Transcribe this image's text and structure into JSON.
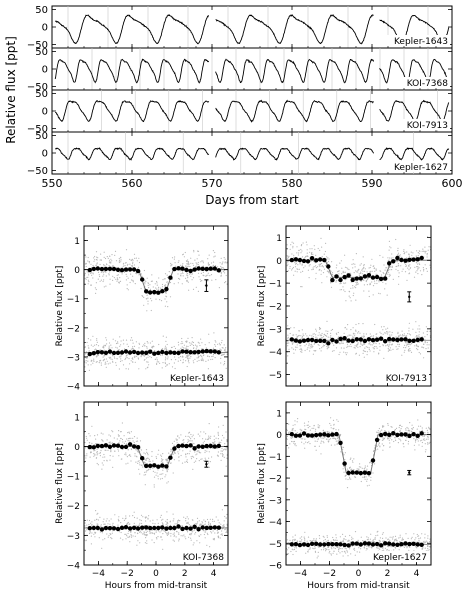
{
  "chart_data": [
    {
      "type": "line",
      "panel": "light-curves",
      "xlabel": "Days from start",
      "ylabel": "Relative flux [ppt]",
      "xlim": [
        550,
        600
      ],
      "xticks": [
        "550",
        "560",
        "570",
        "580",
        "590",
        "600"
      ],
      "gaps": [
        [
          569.6,
          570.4
        ],
        [
          590.2,
          590.9
        ]
      ],
      "series": [
        {
          "name": "Kepler-1643",
          "ylim": [
            -60,
            60
          ],
          "yticks": [
            "50",
            "0",
            "−50"
          ],
          "amplitude": 38,
          "offset": 0,
          "period": 5.1,
          "phase": 0.4,
          "shape": 2.2,
          "grid": 5
        },
        {
          "name": "KOI-7368",
          "ylim": [
            -60,
            60
          ],
          "yticks": [
            "50",
            "0",
            "−50"
          ],
          "amplitude": 34,
          "offset": 0,
          "period": 2.6,
          "phase": 0.2,
          "shape": 1.6,
          "grid": 3
        },
        {
          "name": "KOI-7913",
          "ylim": [
            -60,
            60
          ],
          "yticks": [
            "50",
            "0",
            "−50"
          ],
          "amplitude": 32,
          "offset": 5,
          "period": 3.4,
          "phase": 0.7,
          "shape": 1.2,
          "grid": 4.2
        },
        {
          "name": "Kepler-1627",
          "ylim": [
            -60,
            60
          ],
          "yticks": [
            "50",
            "0",
            "−50"
          ],
          "amplitude": 18,
          "offset": 0,
          "period": 2.6,
          "phase": 0.5,
          "shape": 0.9,
          "grid": 7.2
        }
      ]
    },
    {
      "type": "scatter",
      "panel": "transit-folds",
      "xlabel": "Hours from mid-transit",
      "ylabel": "Relative flux [ppt]",
      "xlim": [
        -5,
        5
      ],
      "xticks": [
        "−4",
        "−2",
        "0",
        "2",
        "4"
      ],
      "panels": [
        {
          "name": "Kepler-1643",
          "ylim": [
            -4,
            1.5
          ],
          "yticks": [
            1,
            0,
            -1,
            -2,
            -3,
            -4
          ],
          "ytick_labels": [
            "1",
            "0",
            "−1",
            "−2",
            "−3",
            "−4"
          ],
          "depth": 0.75,
          "duration": 2.4,
          "residual_offset": -2.85,
          "errbar": {
            "x": 3.5,
            "y": -0.55,
            "half": 0.2
          }
        },
        {
          "name": "KOI-7913",
          "ylim": [
            -5.5,
            1.5
          ],
          "yticks": [
            1,
            0,
            -1,
            -2,
            -3,
            -4,
            -5
          ],
          "ytick_labels": [
            "1",
            "0",
            "−1",
            "−2",
            "−3",
            "−4",
            "−5"
          ],
          "depth": 0.75,
          "duration": 4.6,
          "residual_offset": -3.5,
          "errbar": {
            "x": 3.5,
            "y": -1.6,
            "half": 0.22
          }
        },
        {
          "name": "KOI-7368",
          "ylim": [
            -4,
            1.5
          ],
          "yticks": [
            1,
            0,
            -1,
            -2,
            -3,
            -4
          ],
          "ytick_labels": [
            "1",
            "0",
            "−1",
            "−2",
            "−3",
            "−4"
          ],
          "depth": 0.65,
          "duration": 2.6,
          "residual_offset": -2.75,
          "errbar": {
            "x": 3.5,
            "y": -0.6,
            "half": 0.1
          }
        },
        {
          "name": "Kepler-1627",
          "ylim": [
            -6,
            1.5
          ],
          "yticks": [
            1,
            0,
            -1,
            -2,
            -3,
            -4,
            -5,
            -6
          ],
          "ytick_labels": [
            "1",
            "0",
            "−1",
            "−2",
            "−3",
            "−4",
            "−5",
            "−6"
          ],
          "depth": 1.75,
          "duration": 2.7,
          "residual_offset": -5.05,
          "errbar": {
            "x": 3.5,
            "y": -1.75,
            "half": 0.1
          }
        }
      ]
    }
  ]
}
